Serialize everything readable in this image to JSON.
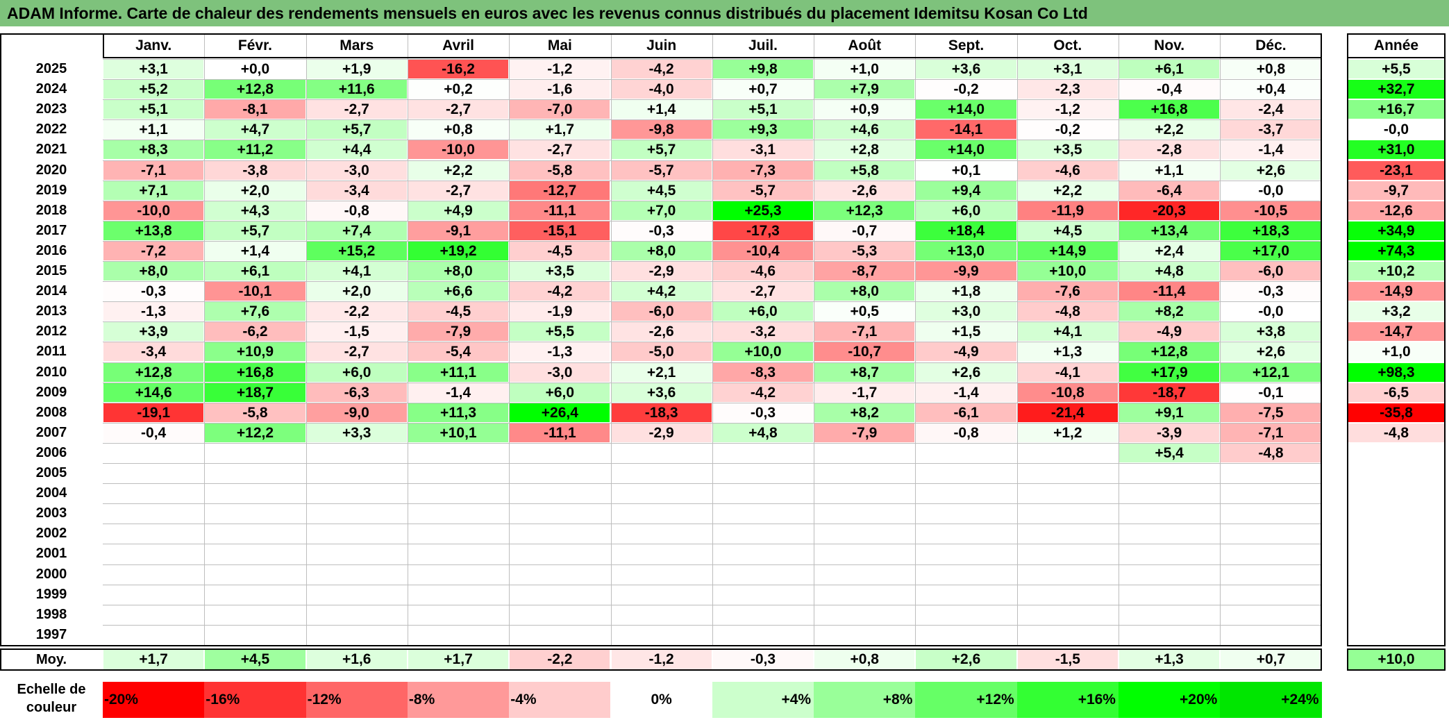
{
  "title": "ADAM Informe. Carte de chaleur des rendements mensuels en euros avec les revenus connus distribués du placement Idemitsu Kosan Co Ltd",
  "chart_data": {
    "type": "heatmap",
    "title": "ADAM Informe. Carte de chaleur des rendements mensuels en euros avec les revenus connus distribués du placement Idemitsu Kosan Co Ltd",
    "columns": [
      "Janv.",
      "Févr.",
      "Mars",
      "Avril",
      "Mai",
      "Juin",
      "Juil.",
      "Août",
      "Sept.",
      "Oct.",
      "Nov.",
      "Déc."
    ],
    "annual_header": "Année",
    "rows": [
      {
        "year": "2025",
        "values": [
          "+3,1",
          "+0,0",
          "+1,9",
          "-16,2",
          "-1,2",
          "-4,2",
          "+9,8",
          "+1,0",
          "+3,6",
          "+3,1",
          "+6,1",
          "+0,8"
        ],
        "annual": "+5,5"
      },
      {
        "year": "2024",
        "values": [
          "+5,2",
          "+12,8",
          "+11,6",
          "+0,2",
          "-1,6",
          "-4,0",
          "+0,7",
          "+7,9",
          "-0,2",
          "-2,3",
          "-0,4",
          "+0,4"
        ],
        "annual": "+32,7"
      },
      {
        "year": "2023",
        "values": [
          "+5,1",
          "-8,1",
          "-2,7",
          "-2,7",
          "-7,0",
          "+1,4",
          "+5,1",
          "+0,9",
          "+14,0",
          "-1,2",
          "+16,8",
          "-2,4"
        ],
        "annual": "+16,7"
      },
      {
        "year": "2022",
        "values": [
          "+1,1",
          "+4,7",
          "+5,7",
          "+0,8",
          "+1,7",
          "-9,8",
          "+9,3",
          "+4,6",
          "-14,1",
          "-0,2",
          "+2,2",
          "-3,7"
        ],
        "annual": "-0,0"
      },
      {
        "year": "2021",
        "values": [
          "+8,3",
          "+11,2",
          "+4,4",
          "-10,0",
          "-2,7",
          "+5,7",
          "-3,1",
          "+2,8",
          "+14,0",
          "+3,5",
          "-2,8",
          "-1,4"
        ],
        "annual": "+31,0"
      },
      {
        "year": "2020",
        "values": [
          "-7,1",
          "-3,8",
          "-3,0",
          "+2,2",
          "-5,8",
          "-5,7",
          "-7,3",
          "+5,8",
          "+0,1",
          "-4,6",
          "+1,1",
          "+2,6"
        ],
        "annual": "-23,1"
      },
      {
        "year": "2019",
        "values": [
          "+7,1",
          "+2,0",
          "-3,4",
          "-2,7",
          "-12,7",
          "+4,5",
          "-5,7",
          "-2,6",
          "+9,4",
          "+2,2",
          "-6,4",
          "-0,0"
        ],
        "annual": "-9,7"
      },
      {
        "year": "2018",
        "values": [
          "-10,0",
          "+4,3",
          "-0,8",
          "+4,9",
          "-11,1",
          "+7,0",
          "+25,3",
          "+12,3",
          "+6,0",
          "-11,9",
          "-20,3",
          "-10,5"
        ],
        "annual": "-12,6"
      },
      {
        "year": "2017",
        "values": [
          "+13,8",
          "+5,7",
          "+7,4",
          "-9,1",
          "-15,1",
          "-0,3",
          "-17,3",
          "-0,7",
          "+18,4",
          "+4,5",
          "+13,4",
          "+18,3"
        ],
        "annual": "+34,9"
      },
      {
        "year": "2016",
        "values": [
          "-7,2",
          "+1,4",
          "+15,2",
          "+19,2",
          "-4,5",
          "+8,0",
          "-10,4",
          "-5,3",
          "+13,0",
          "+14,9",
          "+2,4",
          "+17,0"
        ],
        "annual": "+74,3"
      },
      {
        "year": "2015",
        "values": [
          "+8,0",
          "+6,1",
          "+4,1",
          "+8,0",
          "+3,5",
          "-2,9",
          "-4,6",
          "-8,7",
          "-9,9",
          "+10,0",
          "+4,8",
          "-6,0"
        ],
        "annual": "+10,2"
      },
      {
        "year": "2014",
        "values": [
          "-0,3",
          "-10,1",
          "+2,0",
          "+6,6",
          "-4,2",
          "+4,2",
          "-2,7",
          "+8,0",
          "+1,8",
          "-7,6",
          "-11,4",
          "-0,3"
        ],
        "annual": "-14,9"
      },
      {
        "year": "2013",
        "values": [
          "-1,3",
          "+7,6",
          "-2,2",
          "-4,5",
          "-1,9",
          "-6,0",
          "+6,0",
          "+0,5",
          "+3,0",
          "-4,8",
          "+8,2",
          "-0,0"
        ],
        "annual": "+3,2"
      },
      {
        "year": "2012",
        "values": [
          "+3,9",
          "-6,2",
          "-1,5",
          "-7,9",
          "+5,5",
          "-2,6",
          "-3,2",
          "-7,1",
          "+1,5",
          "+4,1",
          "-4,9",
          "+3,8"
        ],
        "annual": "-14,7"
      },
      {
        "year": "2011",
        "values": [
          "-3,4",
          "+10,9",
          "-2,7",
          "-5,4",
          "-1,3",
          "-5,0",
          "+10,0",
          "-10,7",
          "-4,9",
          "+1,3",
          "+12,8",
          "+2,6"
        ],
        "annual": "+1,0"
      },
      {
        "year": "2010",
        "values": [
          "+12,8",
          "+16,8",
          "+6,0",
          "+11,1",
          "-3,0",
          "+2,1",
          "-8,3",
          "+8,7",
          "+2,6",
          "-4,1",
          "+17,9",
          "+12,1"
        ],
        "annual": "+98,3"
      },
      {
        "year": "2009",
        "values": [
          "+14,6",
          "+18,7",
          "-6,3",
          "-1,4",
          "+6,0",
          "+3,6",
          "-4,2",
          "-1,7",
          "-1,4",
          "-10,8",
          "-18,7",
          "-0,1"
        ],
        "annual": "-6,5"
      },
      {
        "year": "2008",
        "values": [
          "-19,1",
          "-5,8",
          "-9,0",
          "+11,3",
          "+26,4",
          "-18,3",
          "-0,3",
          "+8,2",
          "-6,1",
          "-21,4",
          "+9,1",
          "-7,5"
        ],
        "annual": "-35,8"
      },
      {
        "year": "2007",
        "values": [
          "-0,4",
          "+12,2",
          "+3,3",
          "+10,1",
          "-11,1",
          "-2,9",
          "+4,8",
          "-7,9",
          "-0,8",
          "+1,2",
          "-3,9",
          "-7,1"
        ],
        "annual": "-4,8"
      },
      {
        "year": "2006",
        "values": [
          "",
          "",
          "",
          "",
          "",
          "",
          "",
          "",
          "",
          "",
          "+5,4",
          "-4,8"
        ],
        "annual": ""
      },
      {
        "year": "2005",
        "values": [
          "",
          "",
          "",
          "",
          "",
          "",
          "",
          "",
          "",
          "",
          "",
          ""
        ],
        "annual": ""
      },
      {
        "year": "2004",
        "values": [
          "",
          "",
          "",
          "",
          "",
          "",
          "",
          "",
          "",
          "",
          "",
          ""
        ],
        "annual": ""
      },
      {
        "year": "2003",
        "values": [
          "",
          "",
          "",
          "",
          "",
          "",
          "",
          "",
          "",
          "",
          "",
          ""
        ],
        "annual": ""
      },
      {
        "year": "2002",
        "values": [
          "",
          "",
          "",
          "",
          "",
          "",
          "",
          "",
          "",
          "",
          "",
          ""
        ],
        "annual": ""
      },
      {
        "year": "2001",
        "values": [
          "",
          "",
          "",
          "",
          "",
          "",
          "",
          "",
          "",
          "",
          "",
          ""
        ],
        "annual": ""
      },
      {
        "year": "2000",
        "values": [
          "",
          "",
          "",
          "",
          "",
          "",
          "",
          "",
          "",
          "",
          "",
          ""
        ],
        "annual": ""
      },
      {
        "year": "1999",
        "values": [
          "",
          "",
          "",
          "",
          "",
          "",
          "",
          "",
          "",
          "",
          "",
          ""
        ],
        "annual": ""
      },
      {
        "year": "1998",
        "values": [
          "",
          "",
          "",
          "",
          "",
          "",
          "",
          "",
          "",
          "",
          "",
          ""
        ],
        "annual": ""
      },
      {
        "year": "1997",
        "values": [
          "",
          "",
          "",
          "",
          "",
          "",
          "",
          "",
          "",
          "",
          "",
          ""
        ],
        "annual": ""
      }
    ],
    "average": {
      "label": "Moy.",
      "values": [
        "+1,7",
        "+4,5",
        "+1,6",
        "+1,7",
        "-2,2",
        "-1,2",
        "-0,3",
        "+0,8",
        "+2,6",
        "-1,5",
        "+1,3",
        "+0,7"
      ],
      "annual": "+10,0"
    },
    "color_scale": {
      "label": "Echelle de couleur",
      "steps": [
        {
          "label": "-20%",
          "value": -20,
          "color": "#ff0000"
        },
        {
          "label": "-16%",
          "value": -16,
          "color": "#ff3333"
        },
        {
          "label": "-12%",
          "value": -12,
          "color": "#ff6666"
        },
        {
          "label": "-8%",
          "value": -8,
          "color": "#ff9999"
        },
        {
          "label": "-4%",
          "value": -4,
          "color": "#ffcccc"
        },
        {
          "label": "0%",
          "value": 0,
          "color": "#ffffff"
        },
        {
          "label": "+4%",
          "value": 4,
          "color": "#ccffcc"
        },
        {
          "label": "+8%",
          "value": 8,
          "color": "#99ff99"
        },
        {
          "label": "+12%",
          "value": 12,
          "color": "#66ff66"
        },
        {
          "label": "+16%",
          "value": 16,
          "color": "#33ff33"
        },
        {
          "label": "+20%",
          "value": 20,
          "color": "#00ff00"
        },
        {
          "label": "+24%",
          "value": 24,
          "color": "#00e600"
        }
      ]
    }
  }
}
